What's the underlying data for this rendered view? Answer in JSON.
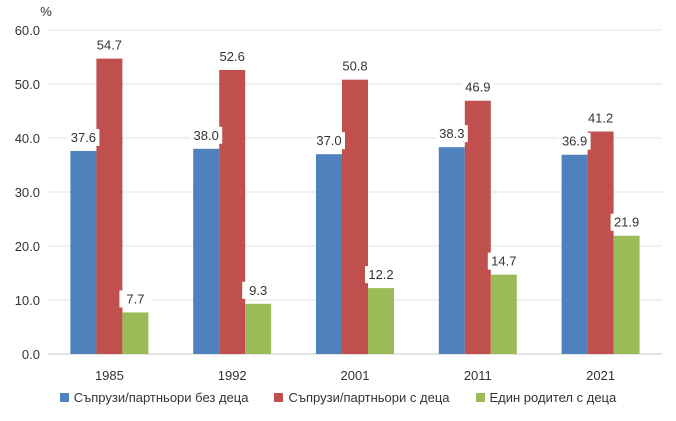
{
  "chart_data": {
    "type": "bar",
    "title": "",
    "ylabel": "%",
    "xlabel": "",
    "ylim": [
      0,
      60
    ],
    "yticks": [
      "0.0",
      "10.0",
      "20.0",
      "30.0",
      "40.0",
      "50.0",
      "60.0"
    ],
    "categories": [
      "1985",
      "1992",
      "2001",
      "2011",
      "2021"
    ],
    "series": [
      {
        "name": "Съпрузи/партньори без деца",
        "color": "#4f81bd",
        "values": [
          37.6,
          38.0,
          37.0,
          38.3,
          36.9
        ],
        "labels": [
          "37.6",
          "38.0",
          "37.0",
          "38.3",
          "36.9"
        ]
      },
      {
        "name": "Съпрузи/партньори с деца",
        "color": "#c0504d",
        "values": [
          54.7,
          52.6,
          50.8,
          46.9,
          41.2
        ],
        "labels": [
          "54.7",
          "52.6",
          "50.8",
          "46.9",
          "41.2"
        ]
      },
      {
        "name": "Един родител с деца",
        "color": "#9bbb59",
        "values": [
          7.7,
          9.3,
          12.2,
          14.7,
          21.9
        ],
        "labels": [
          "7.7",
          "9.3",
          "12.2",
          "14.7",
          "21.9"
        ]
      }
    ],
    "legend_position": "bottom",
    "grid": true
  }
}
